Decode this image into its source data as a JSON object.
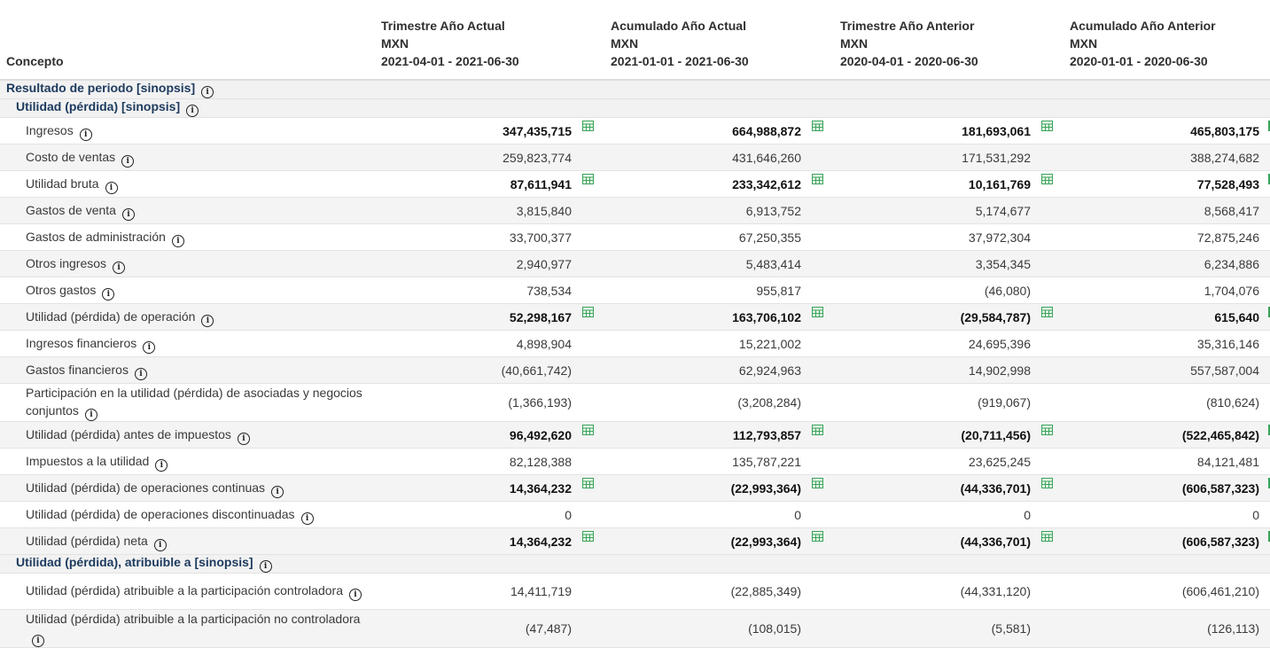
{
  "header": {
    "concept": "Concepto",
    "columns": [
      {
        "title": "Trimestre Año Actual",
        "currency": "MXN",
        "period": "2021-04-01 - 2021-06-30"
      },
      {
        "title": "Acumulado Año Actual",
        "currency": "MXN",
        "period": "2021-01-01 - 2021-06-30"
      },
      {
        "title": "Trimestre Año Anterior",
        "currency": "MXN",
        "period": "2020-04-01 - 2020-06-30"
      },
      {
        "title": "Acumulado Año Anterior",
        "currency": "MXN",
        "period": "2020-01-01 - 2020-06-30"
      }
    ]
  },
  "sections": {
    "s1": "Resultado de periodo [sinopsis]",
    "s2": "Utilidad (pérdida) [sinopsis]",
    "s3": "Utilidad (pérdida), atribuible a [sinopsis]"
  },
  "rows": [
    {
      "label": "Ingresos",
      "values": [
        "347,435,715",
        "664,988,872",
        "181,693,061",
        "465,803,175"
      ]
    },
    {
      "label": "Costo de ventas",
      "values": [
        "259,823,774",
        "431,646,260",
        "171,531,292",
        "388,274,682"
      ]
    },
    {
      "label": "Utilidad bruta",
      "values": [
        "87,611,941",
        "233,342,612",
        "10,161,769",
        "77,528,493"
      ]
    },
    {
      "label": "Gastos de venta",
      "values": [
        "3,815,840",
        "6,913,752",
        "5,174,677",
        "8,568,417"
      ]
    },
    {
      "label": "Gastos de administración",
      "values": [
        "33,700,377",
        "67,250,355",
        "37,972,304",
        "72,875,246"
      ]
    },
    {
      "label": "Otros ingresos",
      "values": [
        "2,940,977",
        "5,483,414",
        "3,354,345",
        "6,234,886"
      ]
    },
    {
      "label": "Otros gastos",
      "values": [
        "738,534",
        "955,817",
        "(46,080)",
        "1,704,076"
      ]
    },
    {
      "label": "Utilidad (pérdida) de operación",
      "values": [
        "52,298,167",
        "163,706,102",
        "(29,584,787)",
        "615,640"
      ]
    },
    {
      "label": "Ingresos financieros",
      "values": [
        "4,898,904",
        "15,221,002",
        "24,695,396",
        "35,316,146"
      ]
    },
    {
      "label": "Gastos financieros",
      "values": [
        "(40,661,742)",
        "62,924,963",
        "14,902,998",
        "557,587,004"
      ]
    },
    {
      "label": "Participación en la utilidad (pérdida) de asociadas y negocios conjuntos",
      "values": [
        "(1,366,193)",
        "(3,208,284)",
        "(919,067)",
        "(810,624)"
      ]
    },
    {
      "label": "Utilidad (pérdida) antes de impuestos",
      "values": [
        "96,492,620",
        "112,793,857",
        "(20,711,456)",
        "(522,465,842)"
      ]
    },
    {
      "label": "Impuestos a la utilidad",
      "values": [
        "82,128,388",
        "135,787,221",
        "23,625,245",
        "84,121,481"
      ]
    },
    {
      "label": "Utilidad (pérdida) de operaciones continuas",
      "values": [
        "14,364,232",
        "(22,993,364)",
        "(44,336,701)",
        "(606,587,323)"
      ]
    },
    {
      "label": "Utilidad (pérdida) de operaciones discontinuadas",
      "values": [
        "0",
        "0",
        "0",
        "0"
      ]
    },
    {
      "label": "Utilidad (pérdida) neta",
      "values": [
        "14,364,232",
        "(22,993,364)",
        "(44,336,701)",
        "(606,587,323)"
      ]
    },
    {
      "label": "Utilidad (pérdida) atribuible a la participación controladora",
      "values": [
        "14,411,719",
        "(22,885,349)",
        "(44,331,120)",
        "(606,461,210)"
      ]
    },
    {
      "label": "Utilidad (pérdida) atribuible a la participación no controladora",
      "values": [
        "(47,487)",
        "(108,015)",
        "(5,581)",
        "(126,113)"
      ]
    }
  ],
  "icons": {
    "info": "info-icon",
    "calc": "calculator-icon"
  },
  "colors": {
    "section_text": "#1c3a5e",
    "calc_icon": "#3aa35a"
  }
}
